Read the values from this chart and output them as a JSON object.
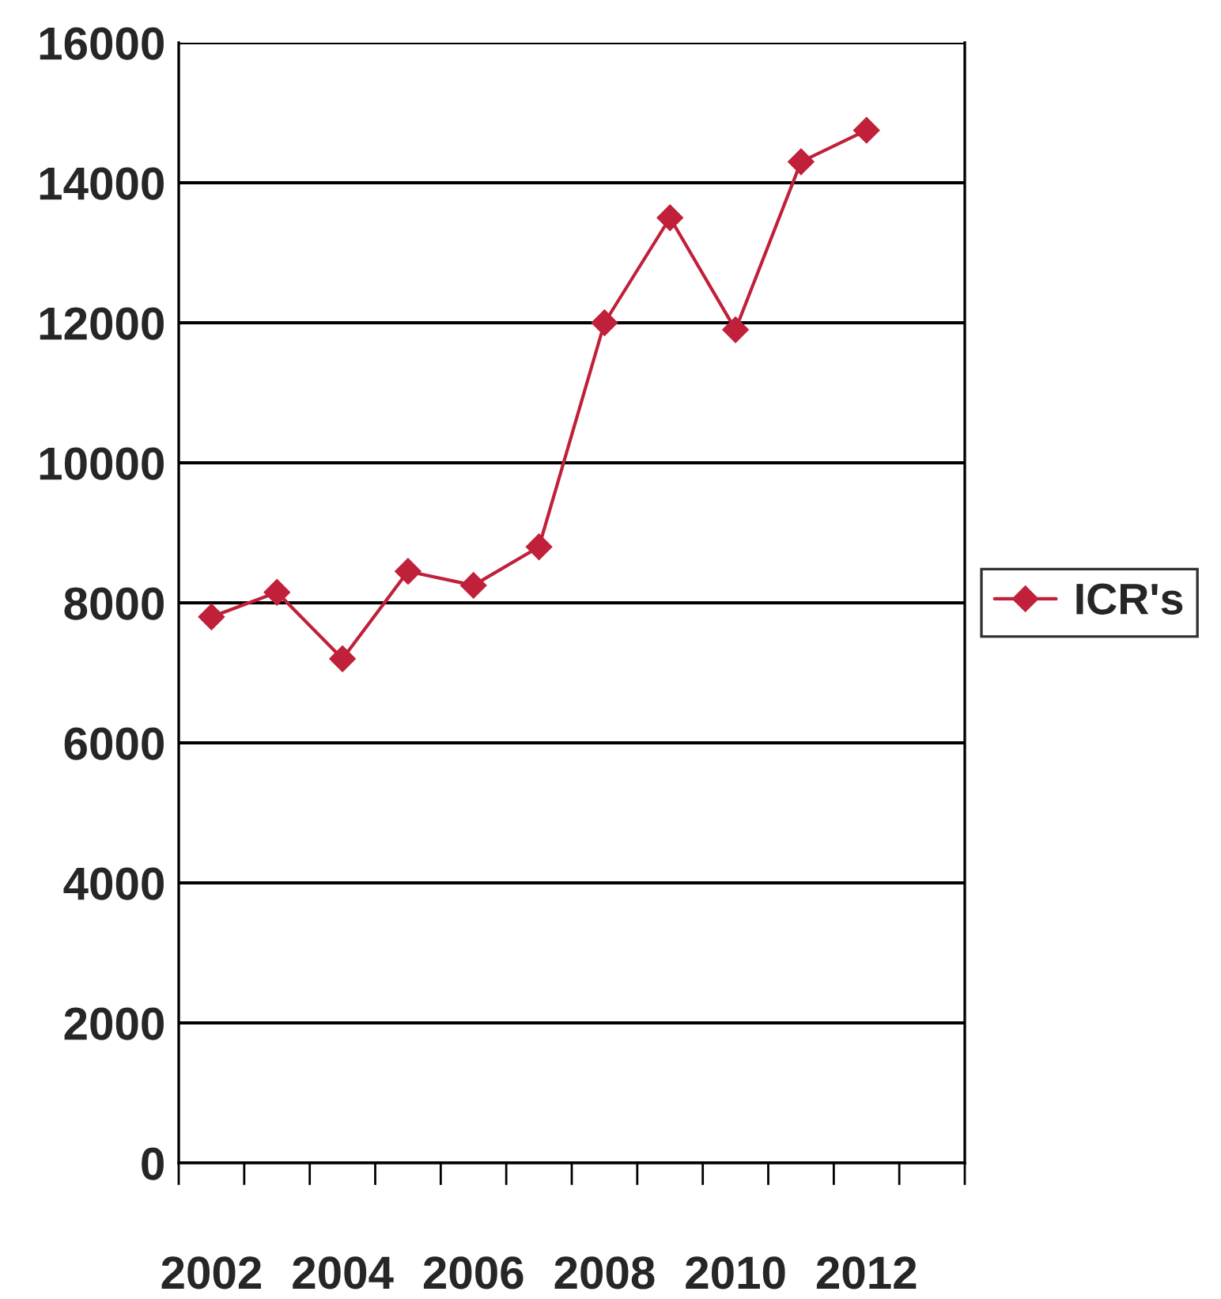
{
  "chart_data": {
    "type": "line",
    "categories": [
      "2002",
      null,
      "2004",
      null,
      "2006",
      null,
      "2008",
      null,
      "2010",
      null,
      "2012",
      null
    ],
    "series": [
      {
        "name": "ICR's",
        "color": "#c0203a",
        "values": [
          7800,
          8150,
          7200,
          8450,
          8250,
          8800,
          12000,
          13500,
          11900,
          14300,
          14750,
          null
        ]
      }
    ],
    "ylim": [
      0,
      16000
    ],
    "yticks": [
      0,
      2000,
      4000,
      6000,
      8000,
      10000,
      12000,
      14000,
      16000
    ],
    "grid": "y",
    "legend": "right",
    "marker": "diamond",
    "line_style": "solid"
  }
}
